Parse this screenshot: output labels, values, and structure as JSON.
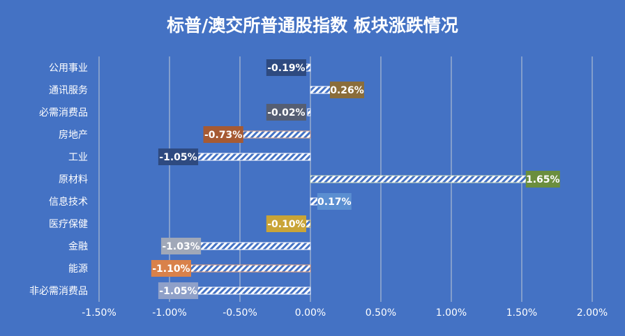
{
  "chart_data": {
    "type": "bar",
    "orientation": "horizontal",
    "title": "标普/澳交所普通股指数 板块涨跌情况",
    "categories": [
      "公用事业",
      "通讯服务",
      "必需消费品",
      "房地产",
      "工业",
      "原材料",
      "信息技术",
      "医疗保健",
      "金融",
      "能源",
      "非必需消费品"
    ],
    "values": [
      -0.19,
      0.26,
      -0.02,
      -0.73,
      -1.05,
      1.65,
      0.17,
      -0.1,
      -1.03,
      -1.1,
      -1.05
    ],
    "data_labels": [
      "-0.19%",
      "0.26%",
      "-0.02%",
      "-0.73%",
      "-1.05%",
      "1.65%",
      "0.17%",
      "-0.10%",
      "-1.03%",
      "-1.10%",
      "-1.05%"
    ],
    "label_colors": [
      "#2e4a80",
      "#8a6d3b",
      "#555e73",
      "#a65a33",
      "#2e4a80",
      "#6b8e3e",
      "#5b8fd1",
      "#c9a437",
      "#a0a8b8",
      "#d9814a",
      "#8fa0c8"
    ],
    "bar_colors": [
      "#ffffff",
      "#ffffff",
      "#ffffff",
      "#f0b08a",
      "#ffffff",
      "#d4e3c0",
      "#ffffff",
      "#f5d67a",
      "#ffffff",
      "#f4a679",
      "#ffffff"
    ],
    "xlim": [
      -1.5,
      2.0
    ],
    "x_ticks": [
      -1.5,
      -1.0,
      -0.5,
      0.0,
      0.5,
      1.0,
      1.5,
      2.0
    ],
    "x_tick_labels": [
      "-1.50%",
      "-1.00%",
      "-0.50%",
      "0.00%",
      "0.50%",
      "1.00%",
      "1.50%",
      "2.00%"
    ],
    "grid": true,
    "background": "#4472c4"
  }
}
